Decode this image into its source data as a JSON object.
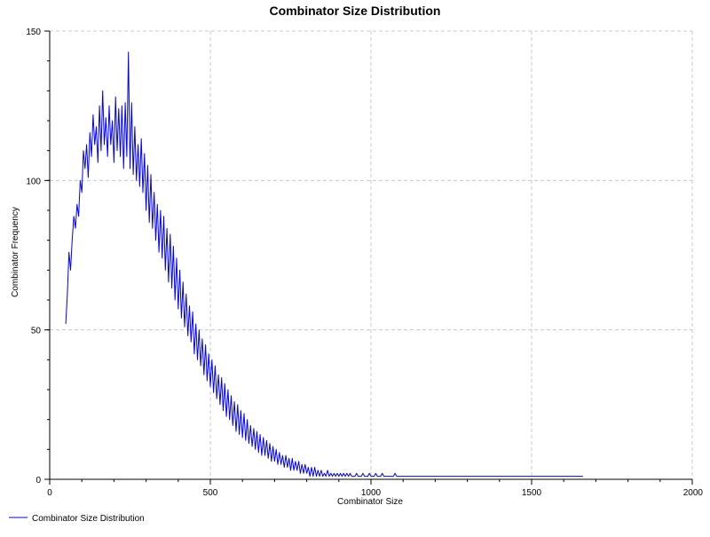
{
  "chart_data": {
    "type": "line",
    "title": "Combinator Size Distribution",
    "xlabel": "Combinator Size",
    "ylabel": "Combinator Frequency",
    "xlim": [
      0,
      2000
    ],
    "ylim": [
      0,
      150
    ],
    "x_ticks": [
      0,
      500,
      1000,
      1500,
      2000
    ],
    "y_ticks": [
      0,
      50,
      100,
      150
    ],
    "x_minor_step": 100,
    "y_minor_step": 10,
    "grid": true,
    "legend_position": "bottom-left",
    "colors": {
      "series": "#0000ff"
    },
    "series": [
      {
        "name": "Combinator Size Distribution",
        "color": "#0000ff",
        "points": [
          [
            50,
            52
          ],
          [
            55,
            62
          ],
          [
            60,
            76
          ],
          [
            65,
            70
          ],
          [
            70,
            80
          ],
          [
            75,
            88
          ],
          [
            80,
            84
          ],
          [
            85,
            92
          ],
          [
            90,
            88
          ],
          [
            95,
            100
          ],
          [
            100,
            96
          ],
          [
            105,
            110
          ],
          [
            110,
            104
          ],
          [
            115,
            112
          ],
          [
            120,
            101
          ],
          [
            125,
            116
          ],
          [
            130,
            108
          ],
          [
            135,
            122
          ],
          [
            140,
            112
          ],
          [
            145,
            118
          ],
          [
            150,
            106
          ],
          [
            155,
            125
          ],
          [
            160,
            110
          ],
          [
            165,
            130
          ],
          [
            170,
            112
          ],
          [
            175,
            121
          ],
          [
            180,
            108
          ],
          [
            185,
            125
          ],
          [
            190,
            112
          ],
          [
            195,
            120
          ],
          [
            200,
            106
          ],
          [
            205,
            128
          ],
          [
            210,
            110
          ],
          [
            215,
            124
          ],
          [
            220,
            108
          ],
          [
            225,
            125
          ],
          [
            230,
            104
          ],
          [
            235,
            126
          ],
          [
            240,
            108
          ],
          [
            245,
            143
          ],
          [
            250,
            104
          ],
          [
            255,
            126
          ],
          [
            260,
            102
          ],
          [
            265,
            118
          ],
          [
            270,
            100
          ],
          [
            275,
            112
          ],
          [
            280,
            98
          ],
          [
            285,
            114
          ],
          [
            290,
            96
          ],
          [
            295,
            109
          ],
          [
            300,
            90
          ],
          [
            305,
            105
          ],
          [
            310,
            86
          ],
          [
            315,
            102
          ],
          [
            320,
            84
          ],
          [
            325,
            96
          ],
          [
            330,
            80
          ],
          [
            335,
            92
          ],
          [
            340,
            76
          ],
          [
            345,
            90
          ],
          [
            350,
            74
          ],
          [
            355,
            88
          ],
          [
            360,
            70
          ],
          [
            365,
            84
          ],
          [
            370,
            66
          ],
          [
            375,
            82
          ],
          [
            380,
            64
          ],
          [
            385,
            78
          ],
          [
            390,
            60
          ],
          [
            395,
            74
          ],
          [
            400,
            57
          ],
          [
            405,
            70
          ],
          [
            410,
            54
          ],
          [
            415,
            66
          ],
          [
            420,
            51
          ],
          [
            425,
            62
          ],
          [
            430,
            48
          ],
          [
            435,
            58
          ],
          [
            440,
            46
          ],
          [
            445,
            56
          ],
          [
            450,
            42
          ],
          [
            455,
            52
          ],
          [
            460,
            40
          ],
          [
            465,
            50
          ],
          [
            470,
            38
          ],
          [
            475,
            47
          ],
          [
            480,
            35
          ],
          [
            485,
            45
          ],
          [
            490,
            33
          ],
          [
            495,
            42
          ],
          [
            500,
            31
          ],
          [
            505,
            40
          ],
          [
            510,
            29
          ],
          [
            515,
            38
          ],
          [
            520,
            27
          ],
          [
            525,
            35
          ],
          [
            530,
            25
          ],
          [
            535,
            34
          ],
          [
            540,
            23
          ],
          [
            545,
            32
          ],
          [
            550,
            21
          ],
          [
            555,
            30
          ],
          [
            560,
            20
          ],
          [
            565,
            28
          ],
          [
            570,
            18
          ],
          [
            575,
            26
          ],
          [
            580,
            16
          ],
          [
            585,
            25
          ],
          [
            590,
            15
          ],
          [
            595,
            23
          ],
          [
            600,
            14
          ],
          [
            605,
            22
          ],
          [
            610,
            13
          ],
          [
            615,
            20
          ],
          [
            620,
            12
          ],
          [
            625,
            18
          ],
          [
            630,
            11
          ],
          [
            635,
            17
          ],
          [
            640,
            10
          ],
          [
            645,
            16
          ],
          [
            650,
            9
          ],
          [
            655,
            15
          ],
          [
            660,
            8
          ],
          [
            665,
            14
          ],
          [
            670,
            8
          ],
          [
            675,
            13
          ],
          [
            680,
            7
          ],
          [
            685,
            12
          ],
          [
            690,
            6
          ],
          [
            695,
            11
          ],
          [
            700,
            6
          ],
          [
            705,
            10
          ],
          [
            710,
            5
          ],
          [
            715,
            9
          ],
          [
            720,
            5
          ],
          [
            725,
            8
          ],
          [
            730,
            4
          ],
          [
            735,
            8
          ],
          [
            740,
            4
          ],
          [
            745,
            7
          ],
          [
            750,
            3
          ],
          [
            755,
            7
          ],
          [
            760,
            3
          ],
          [
            765,
            6
          ],
          [
            770,
            3
          ],
          [
            775,
            6
          ],
          [
            780,
            2
          ],
          [
            785,
            5
          ],
          [
            790,
            2
          ],
          [
            795,
            5
          ],
          [
            800,
            2
          ],
          [
            805,
            4
          ],
          [
            810,
            1
          ],
          [
            815,
            4
          ],
          [
            820,
            1
          ],
          [
            825,
            4
          ],
          [
            830,
            1
          ],
          [
            835,
            3
          ],
          [
            840,
            1
          ],
          [
            845,
            3
          ],
          [
            850,
            1
          ],
          [
            855,
            2
          ],
          [
            860,
            1
          ],
          [
            865,
            3
          ],
          [
            870,
            1
          ],
          [
            875,
            2
          ],
          [
            880,
            1
          ],
          [
            885,
            2
          ],
          [
            890,
            1
          ],
          [
            895,
            2
          ],
          [
            900,
            1
          ],
          [
            905,
            2
          ],
          [
            910,
            1
          ],
          [
            915,
            2
          ],
          [
            920,
            1
          ],
          [
            925,
            2
          ],
          [
            930,
            1
          ],
          [
            935,
            2
          ],
          [
            940,
            1
          ],
          [
            945,
            1
          ],
          [
            950,
            1
          ],
          [
            955,
            2
          ],
          [
            960,
            1
          ],
          [
            965,
            1
          ],
          [
            970,
            1
          ],
          [
            975,
            2
          ],
          [
            980,
            1
          ],
          [
            985,
            1
          ],
          [
            990,
            1
          ],
          [
            995,
            2
          ],
          [
            1000,
            1
          ],
          [
            1005,
            1
          ],
          [
            1010,
            1
          ],
          [
            1015,
            2
          ],
          [
            1020,
            1
          ],
          [
            1025,
            1
          ],
          [
            1030,
            1
          ],
          [
            1035,
            2
          ],
          [
            1040,
            1
          ],
          [
            1045,
            1
          ],
          [
            1050,
            1
          ],
          [
            1055,
            1
          ],
          [
            1060,
            1
          ],
          [
            1065,
            1
          ],
          [
            1070,
            1
          ],
          [
            1075,
            2
          ],
          [
            1080,
            1
          ],
          [
            1085,
            1
          ],
          [
            1090,
            1
          ],
          [
            1095,
            1
          ],
          [
            1100,
            1
          ],
          [
            1105,
            1
          ],
          [
            1110,
            1
          ],
          [
            1115,
            1
          ],
          [
            1120,
            1
          ],
          [
            1125,
            1
          ],
          [
            1130,
            1
          ],
          [
            1135,
            1
          ],
          [
            1140,
            1
          ],
          [
            1145,
            1
          ],
          [
            1150,
            1
          ],
          [
            1155,
            1
          ],
          [
            1160,
            1
          ],
          [
            1165,
            1
          ],
          [
            1170,
            1
          ],
          [
            1175,
            1
          ],
          [
            1180,
            1
          ],
          [
            1185,
            1
          ],
          [
            1190,
            1
          ],
          [
            1195,
            1
          ],
          [
            1200,
            1
          ],
          [
            1205,
            1
          ],
          [
            1210,
            1
          ],
          [
            1215,
            1
          ],
          [
            1220,
            1
          ],
          [
            1225,
            1
          ],
          [
            1230,
            1
          ],
          [
            1235,
            1
          ],
          [
            1240,
            1
          ],
          [
            1245,
            1
          ],
          [
            1250,
            1
          ],
          [
            1255,
            1
          ],
          [
            1260,
            1
          ],
          [
            1265,
            1
          ],
          [
            1270,
            1
          ],
          [
            1275,
            1
          ],
          [
            1280,
            1
          ],
          [
            1290,
            1
          ],
          [
            1300,
            1
          ],
          [
            1320,
            1
          ],
          [
            1340,
            1
          ],
          [
            1360,
            1
          ],
          [
            1380,
            1
          ],
          [
            1400,
            1
          ],
          [
            1420,
            1
          ],
          [
            1440,
            1
          ],
          [
            1460,
            1
          ],
          [
            1480,
            1
          ],
          [
            1500,
            1
          ],
          [
            1520,
            1
          ],
          [
            1540,
            1
          ],
          [
            1560,
            1
          ],
          [
            1580,
            1
          ],
          [
            1600,
            1
          ],
          [
            1620,
            1
          ],
          [
            1640,
            1
          ],
          [
            1660,
            1
          ]
        ]
      }
    ]
  }
}
